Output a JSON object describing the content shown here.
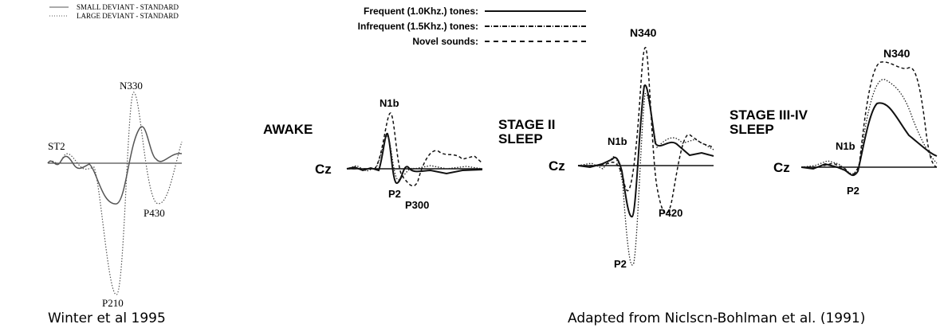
{
  "left_figure": {
    "legend": [
      "SMALL DEVIANT - STANDARD",
      "LARGE DEVIANT - STANDARD"
    ],
    "labels": {
      "n330": "N330",
      "st2": "ST2",
      "p430": "P430",
      "p210": "P210"
    },
    "caption": "Winter et al 1995"
  },
  "right_figure": {
    "legend": [
      "Frequent (1.0Khz.) tones:",
      "Infrequent (1.5Khz.) tones:",
      "Novel sounds:"
    ],
    "panels": [
      {
        "title": [
          "AWAKE"
        ],
        "electrode": "Cz",
        "peaks": [
          "N1b",
          "P2",
          "P300"
        ]
      },
      {
        "title": [
          "STAGE II",
          "SLEEP"
        ],
        "electrode": "Cz",
        "peaks": [
          "N340",
          "N1b",
          "P420",
          "P2"
        ]
      },
      {
        "title": [
          "STAGE III-IV",
          "SLEEP"
        ],
        "electrode": "Cz",
        "peaks": [
          "N340",
          "N1b",
          "P2"
        ]
      }
    ],
    "caption": "Adapted from Niclscn-Bohlman et al. (1991)"
  }
}
